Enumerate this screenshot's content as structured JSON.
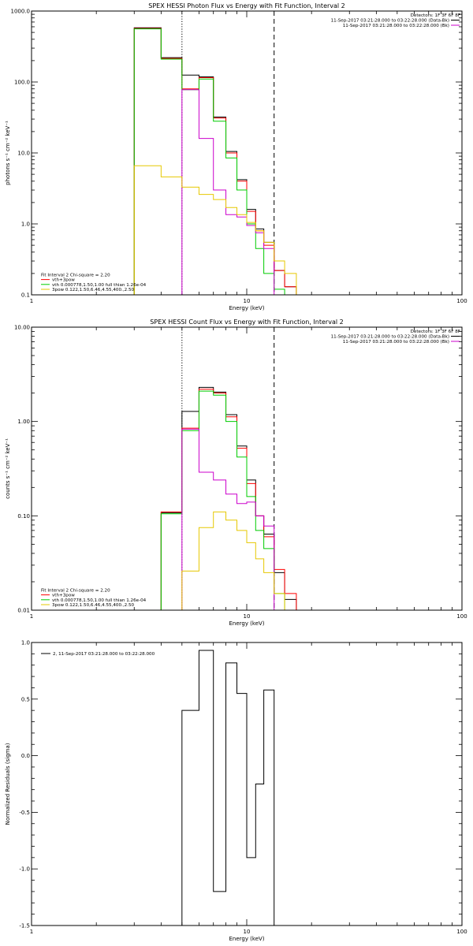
{
  "chart_data": [
    {
      "type": "line",
      "title": "SPEX HESSI Photon Flux vs Energy with Fit Function, Interval 2",
      "xlabel": "Energy (keV)",
      "ylabel": "photons s⁻¹ cm⁻² keV⁻¹",
      "xscale": "log",
      "yscale": "log",
      "xlim": [
        1,
        100
      ],
      "ylim": [
        0.1,
        1000
      ],
      "x_ticks": [
        "1",
        "10",
        "100"
      ],
      "y_ticks": [
        "0.1",
        "1.0",
        "10.0",
        "100.0",
        "1000.0"
      ],
      "vlines": [
        {
          "x": 5,
          "style": "dotted"
        },
        {
          "x": 13.4,
          "style": "dashed"
        }
      ],
      "legend_tr": [
        {
          "text": "Detectors: 1F 3F 6F 8F",
          "color": ""
        },
        {
          "text": "11-Sep-2017 03:21:28.000 to 03:22:28.000 (Data-Bk)",
          "color": "#000000"
        },
        {
          "text": "11-Sep-2017 03:21:28.000 to 03:22:28.000 (Bk)",
          "color": "#cc00cc"
        }
      ],
      "legend_bl": [
        {
          "text": "Fit Interval 2   Chi-square = 2.20",
          "color": ""
        },
        {
          "text": "vth+3pow",
          "color": "#ff0000"
        },
        {
          "text": "vth 0.000778,1.50,1.00  full thian 1.26e-04",
          "color": "#00cc00"
        },
        {
          "text": "3pow 0.122,1.50,6.46,4.55,400.,2.50",
          "color": "#e6c800"
        }
      ],
      "bin_edges": [
        3,
        4,
        5,
        6,
        7,
        8,
        9,
        10,
        11,
        12,
        13.4,
        15,
        17
      ],
      "series": [
        {
          "color": "#000000",
          "values": [
            580,
            220,
            125,
            118,
            32,
            10.5,
            4.2,
            1.6,
            0.85,
            0.55,
            0.22,
            0.13
          ]
        },
        {
          "color": "#ff0000",
          "values": [
            570,
            215,
            80,
            115,
            31,
            10.0,
            4.0,
            1.5,
            0.8,
            0.5,
            0.22,
            0.13
          ]
        },
        {
          "color": "#00cc00",
          "values": [
            560,
            210,
            78,
            110,
            28,
            8.5,
            3.0,
            1.0,
            0.45,
            0.2,
            0.12,
            0.1
          ]
        },
        {
          "color": "#cc00cc",
          "values": [
            null,
            null,
            78,
            16,
            3.0,
            1.35,
            1.25,
            0.95,
            0.75,
            0.45,
            null,
            null
          ]
        },
        {
          "color": "#e6c800",
          "values": [
            6.6,
            4.6,
            3.3,
            2.6,
            2.2,
            1.7,
            1.35,
            1.05,
            0.8,
            0.55,
            0.3,
            0.2
          ]
        }
      ]
    },
    {
      "type": "line",
      "title": "SPEX HESSI Count Flux vs Energy with Fit Function, Interval 2",
      "xlabel": "Energy (keV)",
      "ylabel": "counts s⁻¹ cm⁻² keV⁻¹",
      "xscale": "log",
      "yscale": "log",
      "xlim": [
        1,
        100
      ],
      "ylim": [
        0.01,
        10
      ],
      "x_ticks": [
        "1",
        "10",
        "100"
      ],
      "y_ticks": [
        "0.01",
        "0.10",
        "1.00",
        "10.00"
      ],
      "vlines": [
        {
          "x": 5,
          "style": "dotted"
        },
        {
          "x": 13.4,
          "style": "dashed"
        }
      ],
      "legend_tr": [
        {
          "text": "Detectors: 1F 3F 6F 8F",
          "color": ""
        },
        {
          "text": "11-Sep-2017 03:21:28.000 to 03:22:28.000 (Data-Bk)",
          "color": "#000000"
        },
        {
          "text": "11-Sep-2017 03:21:28.000 to 03:22:28.000 (Bk)",
          "color": "#cc00cc"
        }
      ],
      "legend_bl": [
        {
          "text": "Fit Interval 2   Chi-square = 2.20",
          "color": ""
        },
        {
          "text": "vth+3pow",
          "color": "#ff0000"
        },
        {
          "text": "vth 0.000778,1.50,1.00  full thian 1.26e-04",
          "color": "#00cc00"
        },
        {
          "text": "3pow 0.122,1.50,6.46,4.55,400.,2.50",
          "color": "#e6c800"
        }
      ],
      "bin_edges": [
        4,
        5,
        6,
        7,
        8,
        9,
        10,
        11,
        12,
        13.4,
        15,
        17
      ],
      "series": [
        {
          "color": "#000000",
          "values": [
            0.108,
            1.28,
            2.3,
            2.05,
            1.18,
            0.55,
            0.24,
            0.1,
            0.064,
            0.025,
            0.013
          ]
        },
        {
          "color": "#ff0000",
          "values": [
            0.11,
            0.85,
            2.2,
            2.0,
            1.12,
            0.52,
            0.22,
            0.1,
            0.06,
            0.027,
            0.015
          ]
        },
        {
          "color": "#00cc00",
          "values": [
            0.105,
            0.8,
            2.1,
            1.9,
            1.0,
            0.42,
            0.16,
            0.07,
            0.045,
            0.015,
            0.01
          ]
        },
        {
          "color": "#cc00cc",
          "values": [
            null,
            0.83,
            0.29,
            0.24,
            0.17,
            0.135,
            0.14,
            0.1,
            0.078,
            null,
            null
          ]
        },
        {
          "color": "#e6c800",
          "values": [
            null,
            0.026,
            0.075,
            0.11,
            0.09,
            0.07,
            0.052,
            0.035,
            0.025,
            0.015,
            null
          ]
        }
      ]
    },
    {
      "type": "line",
      "title": "",
      "xlabel": "Energy (keV)",
      "ylabel": "Normalized Residuals (sigma)",
      "xscale": "log",
      "yscale": "linear",
      "xlim": [
        1,
        100
      ],
      "ylim": [
        -1.5,
        1.0
      ],
      "x_ticks": [
        "1",
        "10",
        "100"
      ],
      "y_ticks": [
        "-1.5",
        "-1.0",
        "-0.5",
        "0.0",
        "0.5",
        "1.0"
      ],
      "legend_tl": [
        {
          "text": "2, 11-Sep-2017 03:21:28.000 to 03:22:28.000",
          "color": "#000000"
        }
      ],
      "bin_edges": [
        5,
        6,
        7,
        8,
        9,
        10,
        11,
        12,
        13.4
      ],
      "series": [
        {
          "color": "#000000",
          "values": [
            0.4,
            0.93,
            -1.2,
            0.82,
            0.55,
            -0.9,
            -0.25,
            0.58
          ]
        }
      ]
    }
  ]
}
